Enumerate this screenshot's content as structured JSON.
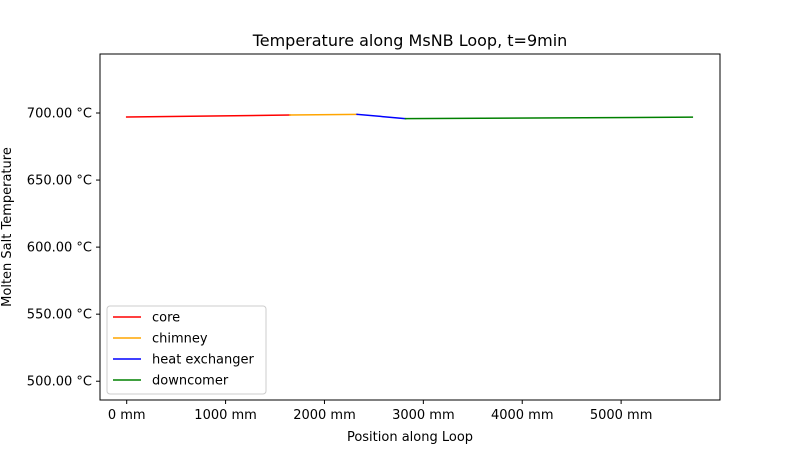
{
  "chart_data": {
    "type": "line",
    "title": "Temperature along MsNB Loop, t=9min",
    "xlabel": "Position along Loop",
    "ylabel": "Molten Salt Temperature",
    "xlim": [
      -270,
      6000
    ],
    "ylim": [
      486,
      744
    ],
    "xticks": [
      0,
      1000,
      2000,
      3000,
      4000,
      5000
    ],
    "xtick_labels": [
      "0 mm",
      "1000 mm",
      "2000 mm",
      "3000 mm",
      "4000 mm",
      "5000 mm"
    ],
    "yticks": [
      500,
      550,
      600,
      650,
      700
    ],
    "ytick_labels": [
      "500.00 °C",
      "550.00 °C",
      "600.00 °C",
      "650.00 °C",
      "700.00 °C"
    ],
    "grid": false,
    "legend_position": "lower-left",
    "series": [
      {
        "name": "core",
        "color": "#ff0000",
        "x": [
          0,
          1650
        ],
        "y": [
          697.0,
          698.5
        ]
      },
      {
        "name": "chimney",
        "color": "#ffa500",
        "x": [
          1650,
          2330
        ],
        "y": [
          698.5,
          699.0
        ]
      },
      {
        "name": "heat exchanger",
        "color": "#0000ff",
        "x": [
          2330,
          2820
        ],
        "y": [
          699.0,
          695.8
        ]
      },
      {
        "name": "downcomer",
        "color": "#008000",
        "x": [
          2820,
          5720
        ],
        "y": [
          695.8,
          696.9
        ]
      }
    ]
  }
}
